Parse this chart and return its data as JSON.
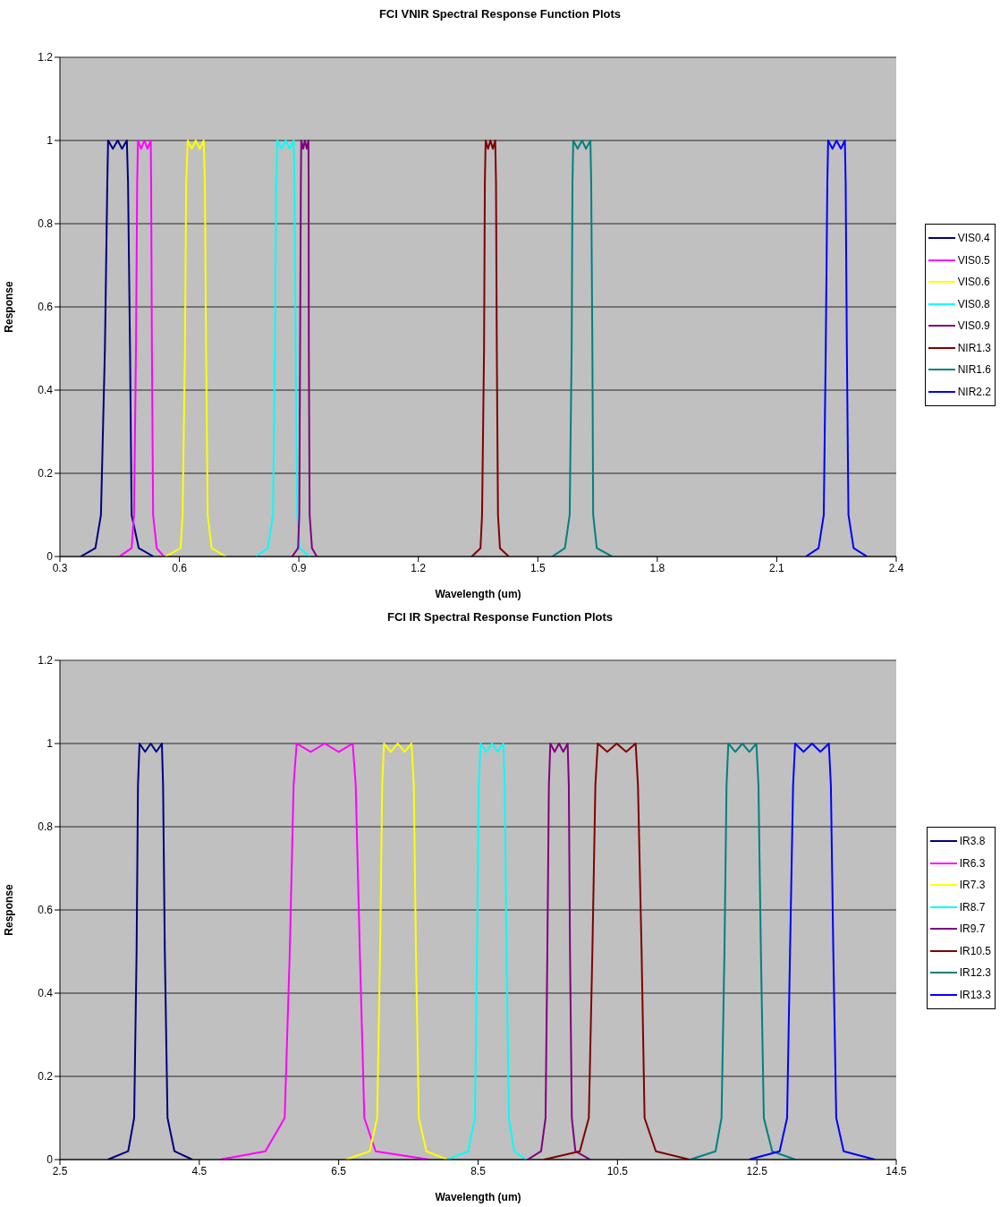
{
  "chart_data": [
    {
      "type": "line",
      "title": "FCI VNIR  Spectral Response Function Plots",
      "xlabel": "Wavelength  (um)",
      "ylabel": "Response",
      "xlim": [
        0.3,
        2.4
      ],
      "xticks": [
        0.3,
        0.6,
        0.9,
        1.2,
        1.5,
        1.8,
        2.1,
        2.4
      ],
      "ylim": [
        0,
        1.2
      ],
      "yticks": [
        0,
        0.2,
        0.4,
        0.6,
        0.8,
        1,
        1.2
      ],
      "grid": "y",
      "legend": "right",
      "series": [
        {
          "name": "VIS0.4",
          "color": "#000080",
          "x": [
            0.352,
            0.389,
            0.403,
            0.413,
            0.419,
            0.421,
            0.433,
            0.445,
            0.456,
            0.468,
            0.471,
            0.476,
            0.48,
            0.498,
            0.535
          ],
          "values": [
            0,
            0.02,
            0.1,
            0.5,
            0.9,
            1,
            0.98,
            1,
            0.98,
            1,
            0.9,
            0.5,
            0.1,
            0.02,
            0
          ]
        },
        {
          "name": "VIS0.5",
          "color": "#ff00ff",
          "x": [
            0.449,
            0.48,
            0.486,
            0.491,
            0.494,
            0.496,
            0.504,
            0.512,
            0.52,
            0.528,
            0.529,
            0.531,
            0.534,
            0.543,
            0.561
          ],
          "values": [
            0,
            0.02,
            0.1,
            0.5,
            0.9,
            1,
            0.98,
            1,
            0.98,
            1,
            0.9,
            0.5,
            0.1,
            0.02,
            0
          ]
        },
        {
          "name": "VIS0.6",
          "color": "#ffff00",
          "x": [
            0.565,
            0.603,
            0.608,
            0.614,
            0.617,
            0.621,
            0.631,
            0.641,
            0.651,
            0.661,
            0.664,
            0.667,
            0.671,
            0.681,
            0.717
          ],
          "values": [
            0,
            0.02,
            0.1,
            0.5,
            0.9,
            1,
            0.98,
            1,
            0.98,
            1,
            0.9,
            0.5,
            0.1,
            0.02,
            0
          ]
        },
        {
          "name": "VIS0.8",
          "color": "#00ffff",
          "x": [
            0.792,
            0.822,
            0.835,
            0.84,
            0.843,
            0.846,
            0.856,
            0.867,
            0.877,
            0.887,
            0.889,
            0.892,
            0.896,
            0.902,
            0.928
          ],
          "values": [
            0,
            0.02,
            0.1,
            0.5,
            0.9,
            1,
            0.98,
            1,
            0.98,
            1,
            0.9,
            0.5,
            0.1,
            0.02,
            0
          ]
        },
        {
          "name": "VIS0.9",
          "color": "#800080",
          "x": [
            0.883,
            0.898,
            0.901,
            0.903,
            0.905,
            0.906,
            0.911,
            0.915,
            0.92,
            0.924,
            0.9245,
            0.925,
            0.927,
            0.933,
            0.945
          ],
          "values": [
            0,
            0.02,
            0.1,
            0.5,
            0.9,
            1,
            0.98,
            1,
            0.98,
            1,
            0.9,
            0.5,
            0.1,
            0.02,
            0
          ]
        },
        {
          "name": "NIR1.3",
          "color": "#800000",
          "x": [
            1.334,
            1.356,
            1.36,
            1.365,
            1.367,
            1.369,
            1.375,
            1.381,
            1.387,
            1.393,
            1.395,
            1.397,
            1.4,
            1.405,
            1.427
          ],
          "values": [
            0,
            0.02,
            0.1,
            0.5,
            0.9,
            1,
            0.98,
            1,
            0.98,
            1,
            0.9,
            0.5,
            0.1,
            0.02,
            0
          ]
        },
        {
          "name": "NIR1.6",
          "color": "#008080",
          "x": [
            1.536,
            1.568,
            1.58,
            1.585,
            1.587,
            1.589,
            1.6,
            1.611,
            1.621,
            1.632,
            1.634,
            1.637,
            1.639,
            1.648,
            1.687
          ],
          "values": [
            0,
            0.02,
            0.1,
            0.5,
            0.9,
            1,
            0.98,
            1,
            0.98,
            1,
            0.9,
            0.5,
            0.1,
            0.02,
            0
          ]
        },
        {
          "name": "NIR2.2",
          "color": "#0000ff",
          "x": [
            2.173,
            2.205,
            2.218,
            2.223,
            2.227,
            2.229,
            2.24,
            2.25,
            2.261,
            2.271,
            2.273,
            2.276,
            2.28,
            2.293,
            2.327
          ],
          "values": [
            0,
            0.02,
            0.1,
            0.5,
            0.9,
            1,
            0.98,
            1,
            0.98,
            1,
            0.9,
            0.5,
            0.1,
            0.02,
            0
          ]
        }
      ]
    },
    {
      "type": "line",
      "title": "FCI IR  Spectral Response Function Plots",
      "xlabel": "Wavelength  (um)",
      "ylabel": "Response",
      "xlim": [
        2.5,
        14.5
      ],
      "xticks": [
        2.5,
        4.5,
        6.5,
        8.5,
        10.5,
        12.5,
        14.5
      ],
      "ylim": [
        0,
        1.2
      ],
      "yticks": [
        0,
        0.2,
        0.4,
        0.6,
        0.8,
        1,
        1.2
      ],
      "grid": "y",
      "legend": "right",
      "series": [
        {
          "name": "IR3.8",
          "color": "#000080",
          "x": [
            3.189,
            3.479,
            3.565,
            3.6,
            3.62,
            3.642,
            3.722,
            3.803,
            3.883,
            3.963,
            3.98,
            4.005,
            4.044,
            4.143,
            4.399
          ],
          "values": [
            0,
            0.02,
            0.1,
            0.5,
            0.9,
            1,
            0.98,
            1,
            0.98,
            1,
            0.9,
            0.5,
            0.1,
            0.02,
            0
          ]
        },
        {
          "name": "IR6.3",
          "color": "#ff00ff",
          "x": [
            4.793,
            5.448,
            5.725,
            5.798,
            5.853,
            5.897,
            6.098,
            6.299,
            6.5,
            6.701,
            6.744,
            6.803,
            6.868,
            7.03,
            7.8
          ],
          "values": [
            0,
            0.02,
            0.1,
            0.5,
            0.9,
            1,
            0.98,
            1,
            0.98,
            1,
            0.9,
            0.5,
            0.1,
            0.02,
            0
          ]
        },
        {
          "name": "IR7.3",
          "color": "#ffff00",
          "x": [
            6.603,
            6.945,
            7.052,
            7.094,
            7.124,
            7.15,
            7.249,
            7.347,
            7.446,
            7.544,
            7.578,
            7.608,
            7.65,
            7.758,
            8.057
          ],
          "values": [
            0,
            0.02,
            0.1,
            0.5,
            0.9,
            1,
            0.98,
            1,
            0.98,
            1,
            0.9,
            0.5,
            0.1,
            0.02,
            0
          ]
        },
        {
          "name": "IR8.7",
          "color": "#00ffff",
          "x": [
            8.057,
            8.356,
            8.455,
            8.485,
            8.51,
            8.536,
            8.618,
            8.699,
            8.781,
            8.862,
            8.882,
            8.908,
            8.942,
            9.019,
            9.19
          ],
          "values": [
            0,
            0.02,
            0.1,
            0.5,
            0.9,
            1,
            0.98,
            1,
            0.98,
            1,
            0.9,
            0.5,
            0.1,
            0.02,
            0
          ]
        },
        {
          "name": "IR9.7",
          "color": "#800080",
          "x": [
            9.212,
            9.404,
            9.468,
            9.494,
            9.516,
            9.537,
            9.599,
            9.661,
            9.723,
            9.785,
            9.802,
            9.819,
            9.845,
            9.896,
            10.11
          ],
          "values": [
            0,
            0.02,
            0.1,
            0.5,
            0.9,
            1,
            0.98,
            1,
            0.98,
            1,
            0.9,
            0.5,
            0.1,
            0.02,
            0
          ]
        },
        {
          "name": "IR10.5",
          "color": "#800000",
          "x": [
            9.447,
            9.96,
            10.089,
            10.14,
            10.183,
            10.217,
            10.353,
            10.489,
            10.625,
            10.761,
            10.794,
            10.846,
            10.889,
            11.051,
            11.531
          ],
          "values": [
            0,
            0.02,
            0.1,
            0.5,
            0.9,
            1,
            0.98,
            1,
            0.98,
            1,
            0.9,
            0.5,
            0.1,
            0.02,
            0
          ]
        },
        {
          "name": "IR12.3",
          "color": "#008080",
          "x": [
            11.544,
            11.907,
            11.993,
            12.035,
            12.065,
            12.091,
            12.192,
            12.292,
            12.393,
            12.493,
            12.523,
            12.558,
            12.6,
            12.72,
            13.053
          ],
          "values": [
            0,
            0.02,
            0.1,
            0.5,
            0.9,
            1,
            0.98,
            1,
            0.98,
            1,
            0.9,
            0.5,
            0.1,
            0.02,
            0
          ]
        },
        {
          "name": "IR13.3",
          "color": "#0000ff",
          "x": [
            12.386,
            12.827,
            12.934,
            12.976,
            13.02,
            13.049,
            13.17,
            13.291,
            13.412,
            13.533,
            13.562,
            13.597,
            13.639,
            13.746,
            14.195
          ],
          "values": [
            0,
            0.02,
            0.1,
            0.5,
            0.9,
            1,
            0.98,
            1,
            0.98,
            1,
            0.9,
            0.5,
            0.1,
            0.02,
            0
          ]
        }
      ]
    }
  ]
}
